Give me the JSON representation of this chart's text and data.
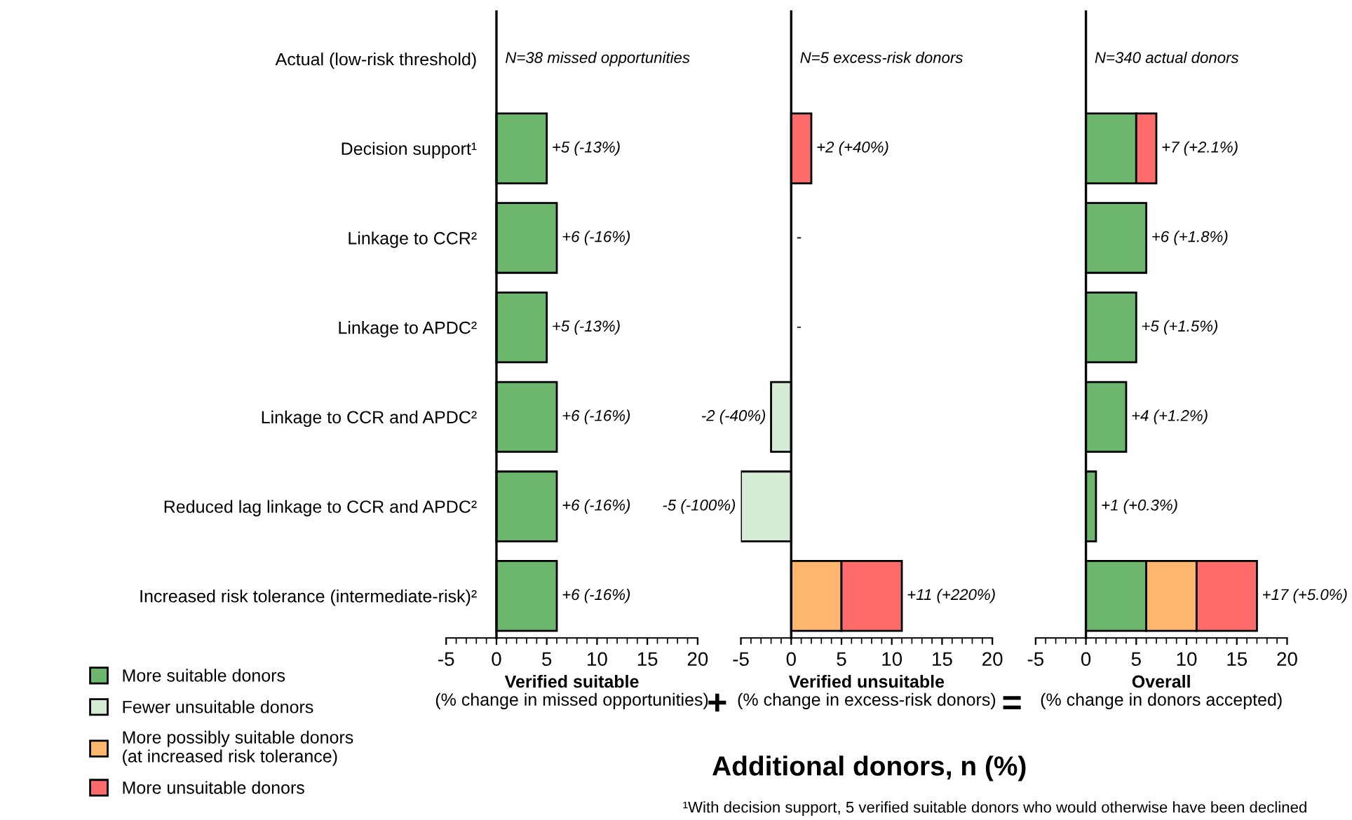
{
  "chart_data": [
    {
      "type": "bar",
      "orientation": "horizontal",
      "stacked": true,
      "legend": "bottom left",
      "categories": [
        "Actual (low-risk threshold)",
        "Decision support¹",
        "Linkage to CCR²",
        "Linkage to APDC²",
        "Linkage to CCR and APDC²",
        "Reduced lag linkage to CCR and APDC²",
        "Increased risk tolerance (intermediate-risk)²"
      ],
      "series": [
        {
          "name": "More suitable donors",
          "color": "#6db66d",
          "values": [
            null,
            5,
            6,
            5,
            6,
            6,
            6
          ]
        }
      ],
      "value_labels": [
        null,
        "+5 (-13%)",
        "+6 (-16%)",
        "+5 (-13%)",
        "+6 (-16%)",
        "+6 (-16%)",
        "+6 (-16%)"
      ],
      "xlabel": "Verified suitable\n(% change in missed opportunities)",
      "xlim": [
        -5,
        20
      ],
      "xticks": [
        -5,
        0,
        5,
        10,
        15,
        20
      ],
      "annotations": [
        "N=38 missed opportunities",
        "Additional donors, n (%)",
        "¹With decision support, 5 verified suitable donors who would otherwise have been declined"
      ]
    },
    {
      "type": "bar",
      "orientation": "horizontal",
      "stacked": true,
      "tick_labels": "x",
      "legend": "bottom left",
      "categories": [
        null,
        null,
        null,
        null,
        null,
        null,
        null
      ],
      "series": [
        {
          "name": "Fewer unsuitable donors",
          "color": "#d5ebd3",
          "values": [
            null,
            null,
            null,
            null,
            -2,
            -5,
            null
          ]
        },
        {
          "name": "More possibly suitable donors\n(at increased risk tolerance)",
          "color": "#fdb66d",
          "values": [
            null,
            null,
            null,
            null,
            null,
            null,
            5
          ]
        },
        {
          "name": "More unsuitable donors",
          "color": "#fd6b6b",
          "values": [
            null,
            2,
            null,
            null,
            null,
            null,
            6
          ]
        }
      ],
      "value_labels": [
        null,
        "+2 (+40%)",
        "-",
        "-",
        "-2 (-40%)",
        "-5 (-100%)",
        "+11 (+220%)"
      ],
      "xlabel": "Verified unsuitable\n(% change in excess-risk donors)",
      "xlim": [
        -5,
        20
      ],
      "xticks": [
        -5,
        0,
        5,
        10,
        15,
        20
      ],
      "annotations": [
        "N=5 excess-risk donors",
        "+"
      ]
    },
    {
      "type": "bar",
      "orientation": "horizontal",
      "stacked": true,
      "tick_labels": "x",
      "legend": "bottom left",
      "categories": [
        null,
        null,
        null,
        null,
        null,
        null,
        null
      ],
      "series": [
        {
          "name": "More suitable donors",
          "color": "#6db66d",
          "values": [
            null,
            5,
            6,
            5,
            4,
            1,
            6
          ]
        },
        {
          "name": "More possibly suitable donors\n(at increased risk tolerance)",
          "color": "#fdb66d",
          "values": [
            null,
            null,
            null,
            null,
            null,
            null,
            5
          ]
        },
        {
          "name": "More unsuitable donors",
          "color": "#fd6b6b",
          "values": [
            null,
            2,
            null,
            null,
            null,
            null,
            6
          ]
        }
      ],
      "value_labels": [
        null,
        "+7 (+2.1%)",
        "+6 (+1.8%)",
        "+5 (+1.5%)",
        "+4 (+1.2%)",
        "+1 (+0.3%)",
        "+17 (+5.0%)"
      ],
      "xlabel": "Overall\n(% change in donors accepted)",
      "xlim": [
        -5,
        20
      ],
      "xticks": [
        -5,
        0,
        5,
        10,
        15,
        20
      ],
      "annotations": [
        "N=340 actual donors",
        "="
      ]
    }
  ]
}
